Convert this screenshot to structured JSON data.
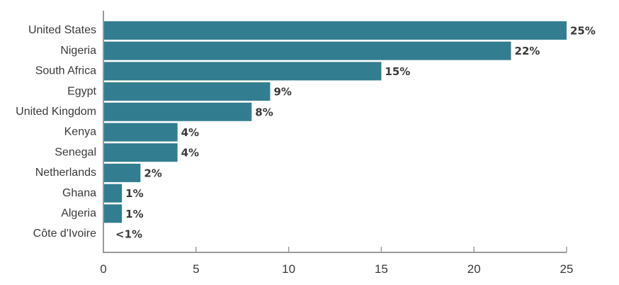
{
  "chart_data": {
    "type": "bar",
    "orientation": "horizontal",
    "title": "",
    "xlabel": "",
    "ylabel": "",
    "xlim": [
      0,
      25
    ],
    "ticks": [
      0,
      5,
      10,
      15,
      20,
      25
    ],
    "grid": false,
    "legend": "none",
    "bar_color": "#327d8f",
    "categories": [
      "United States",
      "Nigeria",
      "South Africa",
      "Egypt",
      "United Kingdom",
      "Kenya",
      "Senegal",
      "Netherlands",
      "Ghana",
      "Algeria",
      "Côte d'Ivoire"
    ],
    "values": [
      25,
      22,
      15,
      9,
      8,
      4,
      4,
      2,
      1,
      1,
      0
    ],
    "value_labels": [
      "25%",
      "22%",
      "15%",
      "9%",
      "8%",
      "4%",
      "4%",
      "2%",
      "1%",
      "1%",
      "<1%"
    ]
  }
}
